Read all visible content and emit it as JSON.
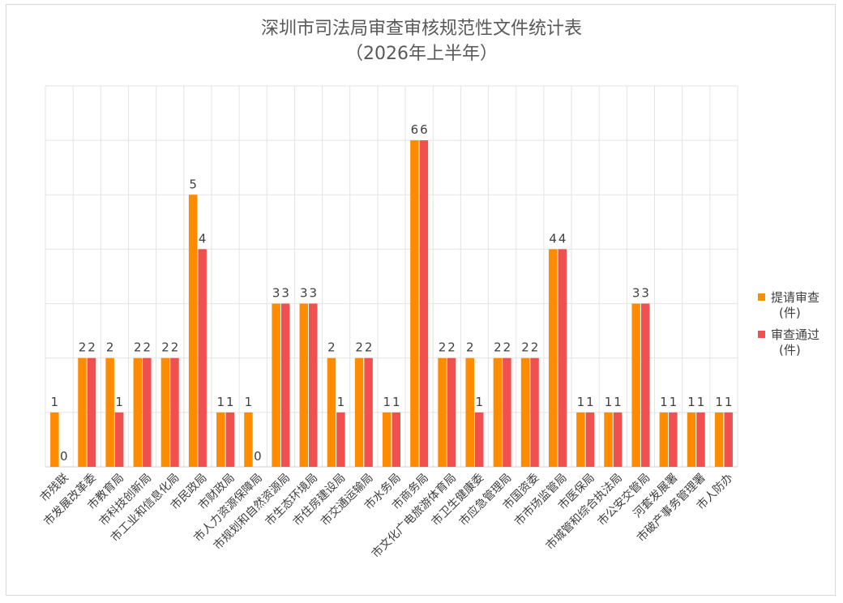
{
  "chart_data": {
    "type": "bar",
    "title": "深圳市司法局审查审核规范性文件统计表",
    "subtitle": "（2026年上半年）",
    "xlabel": "",
    "ylabel": "",
    "ylim": [
      0,
      7
    ],
    "grid": true,
    "legend_position": "right",
    "categories": [
      "市残联",
      "市发展改革委",
      "市教育局",
      "市科技创新局",
      "市工业和信息化局",
      "市民政局",
      "市财政局",
      "市人力资源保障局",
      "市规划和自然资源局",
      "市生态环境局",
      "市住房建设局",
      "市交通运输局",
      "市水务局",
      "市商务局",
      "市文化广电旅游体育局",
      "市卫生健康委",
      "市应急管理局",
      "市国资委",
      "市市场监管局",
      "市医保局",
      "市城管和综合执法局",
      "市公安交管局",
      "河套发展署",
      "市破产事务管理署",
      "市人防办"
    ],
    "series": [
      {
        "name": "提请审查\n(件)",
        "color": "#FF8C00",
        "values": [
          1,
          2,
          2,
          2,
          2,
          5,
          1,
          1,
          3,
          3,
          2,
          2,
          1,
          6,
          2,
          2,
          2,
          2,
          4,
          1,
          1,
          3,
          1,
          1,
          1
        ]
      },
      {
        "name": "审查通过\n(件)",
        "color": "#F05050",
        "values": [
          0,
          2,
          1,
          2,
          2,
          4,
          1,
          0,
          3,
          3,
          1,
          2,
          1,
          6,
          2,
          1,
          2,
          2,
          4,
          1,
          1,
          3,
          1,
          1,
          1
        ]
      }
    ]
  }
}
